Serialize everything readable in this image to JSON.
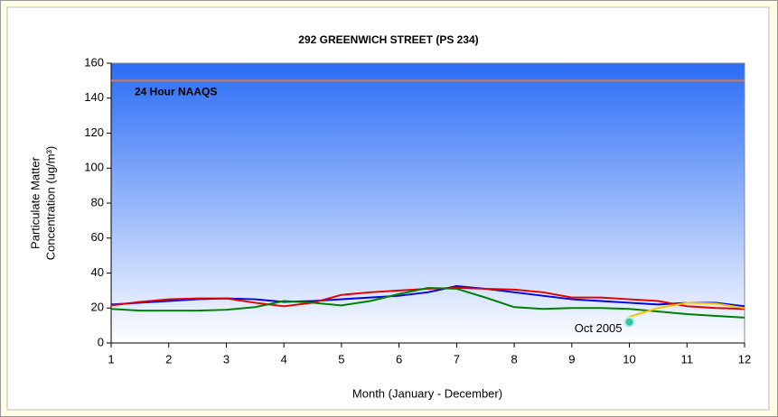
{
  "chart_data": {
    "type": "line",
    "title": "292 GREENWICH STREET (PS 234)",
    "x_label": "Month (January - December)",
    "y_label": [
      "Particulate Matter",
      "Concentration (ug/m³)"
    ],
    "x": [
      1,
      1.5,
      2,
      2.5,
      3,
      3.5,
      4,
      4.5,
      5,
      5.5,
      6,
      6.5,
      7,
      7.5,
      8,
      8.5,
      9,
      9.5,
      10,
      10.5,
      11,
      11.5,
      12
    ],
    "series": [
      {
        "color": "#0000e0",
        "values": [
          22,
          23,
          24,
          25,
          25.5,
          25,
          23.5,
          24,
          25,
          26,
          27,
          29,
          32.5,
          31,
          29,
          27,
          25,
          24,
          23,
          22,
          23,
          23,
          21
        ]
      },
      {
        "color": "#e00000",
        "values": [
          21.5,
          23.5,
          25,
          25.5,
          25.5,
          23,
          21,
          23,
          27.5,
          29,
          30,
          31,
          31.5,
          31,
          30.5,
          29,
          26,
          26,
          25,
          24,
          21,
          20,
          19.5
        ]
      },
      {
        "color": "#008000",
        "values": [
          19.5,
          18.5,
          18.5,
          18.5,
          19,
          20.5,
          24,
          23,
          21.5,
          24,
          28,
          31.5,
          31,
          26,
          20.5,
          19.5,
          20,
          20,
          19.5,
          18,
          16.5,
          15.5,
          14.5
        ]
      },
      {
        "color": "#f5c400",
        "values": [
          null,
          null,
          null,
          null,
          null,
          null,
          null,
          null,
          null,
          null,
          null,
          null,
          null,
          null,
          null,
          null,
          null,
          null,
          15,
          20,
          23,
          22.5,
          20
        ]
      }
    ],
    "reference_line": {
      "value": 150,
      "label": "24 Hour NAAQS",
      "color": "#e8743c"
    },
    "annotation": {
      "text": "Oct 2005",
      "x": 10,
      "y": 12,
      "color": "#2ec4a8"
    },
    "xlim": [
      1,
      12
    ],
    "xticks": [
      1,
      2,
      3,
      4,
      5,
      6,
      7,
      8,
      9,
      10,
      11,
      12
    ],
    "ylim": [
      0,
      160
    ],
    "yticks": [
      0,
      20,
      40,
      60,
      80,
      100,
      120,
      140,
      160
    ],
    "grid": false
  }
}
